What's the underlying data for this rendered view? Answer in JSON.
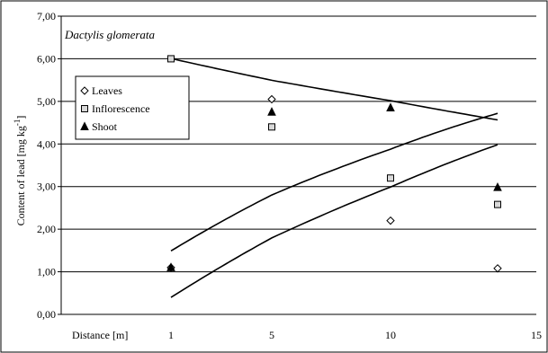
{
  "chart_data": {
    "type": "scatter",
    "annotation": "Dactylis glomerata",
    "xlabel": "Distance [m]",
    "ylabel_main": "Content of lead [mg kg",
    "ylabel_sup": "-1",
    "ylabel_tail": "]",
    "xlim": [
      0,
      15
    ],
    "ylim": [
      0,
      7
    ],
    "x_ticks": [
      "1",
      "5",
      "10",
      "15"
    ],
    "y_ticks": [
      "0,00",
      "1,00",
      "2,00",
      "3,00",
      "4,00",
      "5,00",
      "6,00",
      "7,00"
    ],
    "grid": "horizontal",
    "legend_position": "top-left",
    "x": [
      1,
      5,
      10,
      15
    ],
    "series": [
      {
        "name": "Leaves",
        "marker": "diamond",
        "values": [
          1.1,
          5.05,
          2.2,
          1.08
        ],
        "trend": [
          -0.118,
          1.666,
          -0.058
        ]
      },
      {
        "name": "Inflorescence",
        "marker": "square",
        "values": [
          6.0,
          4.4,
          3.2,
          2.58
        ],
        "trend": [
          0.015,
          -0.555,
          6.545
        ]
      },
      {
        "name": "Shoot",
        "marker": "triangle",
        "values": [
          1.1,
          4.75,
          4.85,
          2.98
        ],
        "trend": [
          -0.1008,
          1.699,
          -1.2
        ]
      }
    ]
  }
}
